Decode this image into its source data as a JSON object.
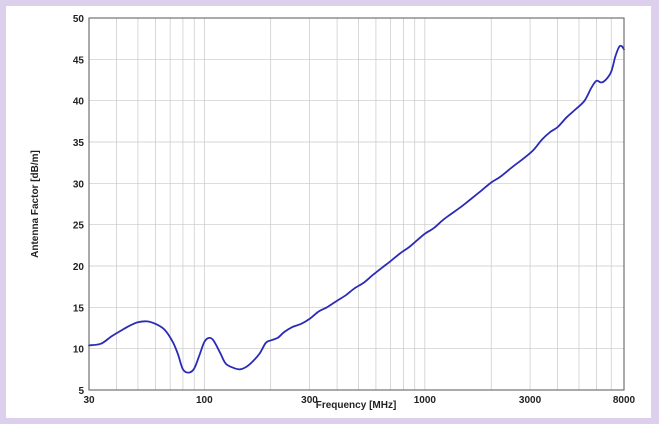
{
  "colors": {
    "background": "#dcd0ec",
    "plot_background": "#ffffff",
    "series": "#2b2bb5",
    "grid": "#c8c8c8"
  },
  "chart_data": {
    "type": "line",
    "title": "",
    "xlabel": "Frequency [MHz]",
    "ylabel": "Antenna Factor [dB/m]",
    "x_scale": "log",
    "xlim": [
      30,
      8000
    ],
    "ylim": [
      5,
      50
    ],
    "grid": true,
    "legend": "none",
    "x_ticks": [
      30,
      100,
      300,
      1000,
      3000,
      8000
    ],
    "x_tick_labels": [
      "30",
      "100",
      "300",
      "1000",
      "3000",
      "8000"
    ],
    "y_ticks": [
      5,
      10,
      15,
      20,
      25,
      30,
      35,
      40,
      45,
      50
    ],
    "y_tick_labels": [
      "5",
      "10",
      "15",
      "20",
      "25",
      "30",
      "35",
      "40",
      "45",
      "50"
    ],
    "series": [
      {
        "x": [
          30,
          34,
          38,
          42,
          46,
          50,
          55,
          60,
          66,
          72,
          76,
          80,
          85,
          90,
          95,
          100,
          105,
          110,
          118,
          125,
          135,
          145,
          155,
          165,
          178,
          190,
          200,
          215,
          230,
          250,
          275,
          300,
          330,
          360,
          400,
          440,
          480,
          530,
          580,
          640,
          700,
          770,
          850,
          930,
          1000,
          1100,
          1200,
          1300,
          1450,
          1600,
          1800,
          2000,
          2200,
          2500,
          2800,
          3100,
          3400,
          3700,
          4000,
          4400,
          4800,
          5300,
          5700,
          6000,
          6300,
          6600,
          7000,
          7300,
          7600,
          7800,
          8000
        ],
        "y": [
          10.4,
          10.6,
          11.5,
          12.2,
          12.8,
          13.2,
          13.3,
          13.0,
          12.3,
          10.8,
          9.3,
          7.5,
          7.1,
          7.6,
          9.2,
          10.8,
          11.3,
          11.0,
          9.5,
          8.2,
          7.7,
          7.5,
          7.8,
          8.4,
          9.4,
          10.7,
          11.0,
          11.3,
          12.0,
          12.6,
          13.0,
          13.6,
          14.5,
          15.0,
          15.8,
          16.5,
          17.3,
          18.0,
          18.9,
          19.8,
          20.6,
          21.5,
          22.3,
          23.2,
          23.9,
          24.6,
          25.5,
          26.2,
          27.1,
          28.0,
          29.1,
          30.1,
          30.8,
          32.0,
          33.0,
          34.0,
          35.3,
          36.2,
          36.8,
          38.0,
          38.9,
          40.0,
          41.6,
          42.4,
          42.2,
          42.5,
          43.5,
          45.3,
          46.5,
          46.6,
          46.2
        ]
      }
    ]
  }
}
